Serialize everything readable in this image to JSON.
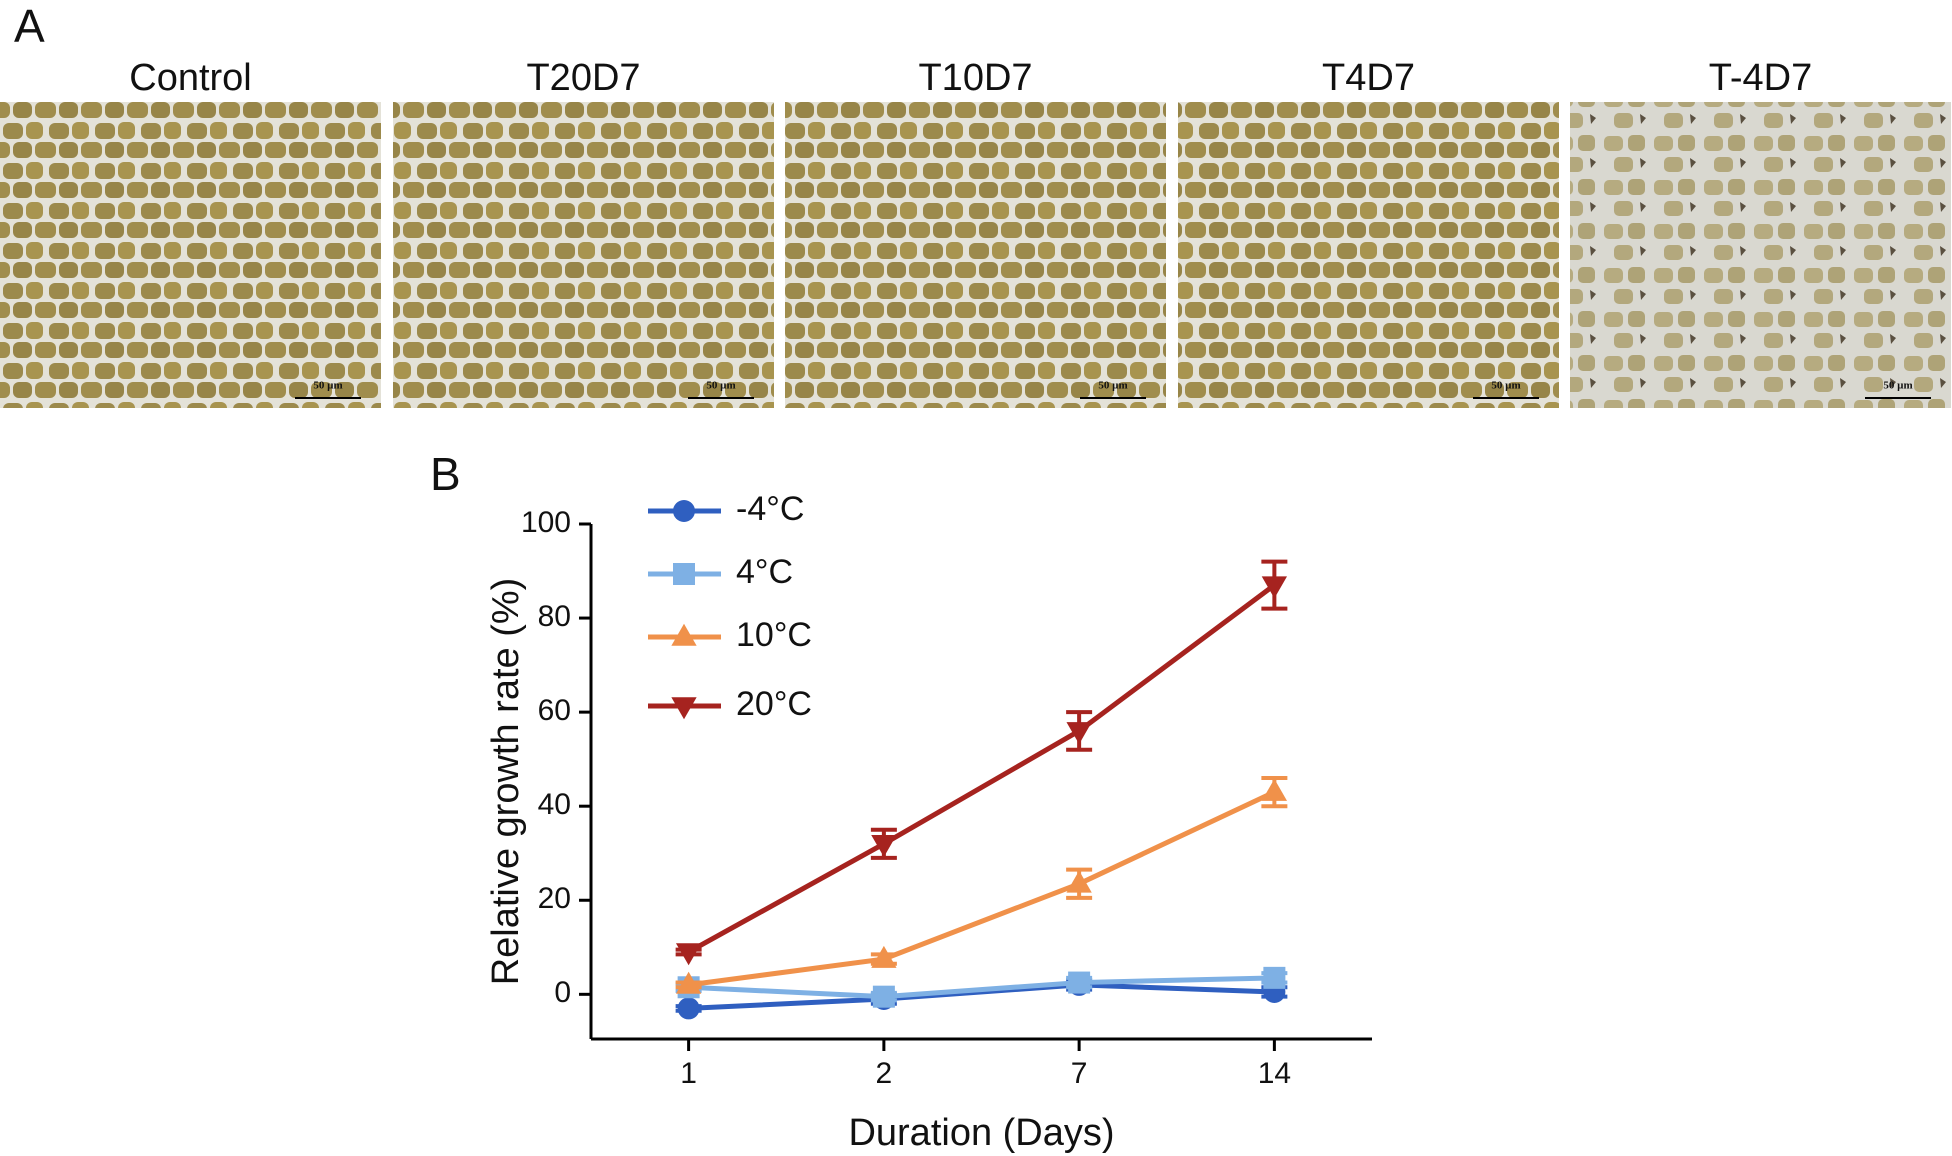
{
  "panel_a": {
    "label": "A",
    "images": [
      {
        "title": "Control",
        "scale_bar": "50 µm"
      },
      {
        "title": "T20D7",
        "scale_bar": "50 µm"
      },
      {
        "title": "T10D7",
        "scale_bar": "50 µm"
      },
      {
        "title": "T4D7",
        "scale_bar": "50 µm"
      },
      {
        "title": "T-4D7",
        "scale_bar": "50 µm"
      }
    ]
  },
  "chart_data": {
    "type": "line",
    "panel_label": "B",
    "x_label": "Duration (Days)",
    "y_label": "Relative growth rate (%)",
    "categories": [
      "1",
      "2",
      "7",
      "14"
    ],
    "ylim": [
      -9.5,
      100
    ],
    "yticks": [
      0,
      20,
      40,
      60,
      80,
      100
    ],
    "series": [
      {
        "name": "-4°C",
        "color": "#2f5fc0",
        "marker": "circle",
        "values": [
          -3,
          -1,
          2,
          0.5
        ],
        "errors": [
          0.5,
          1,
          1,
          1
        ]
      },
      {
        "name": "4°C",
        "color": "#7eb0e4",
        "marker": "square",
        "values": [
          1.5,
          -0.5,
          2.5,
          3.5
        ],
        "errors": [
          0.8,
          0.8,
          1,
          1
        ]
      },
      {
        "name": "10°C",
        "color": "#f0914a",
        "marker": "triangle-up",
        "values": [
          2,
          7.5,
          23.5,
          43
        ],
        "errors": [
          0.5,
          1,
          3,
          3
        ]
      },
      {
        "name": "20°C",
        "color": "#a6231f",
        "marker": "triangle-down",
        "values": [
          9,
          32,
          56,
          87
        ],
        "errors": [
          0.5,
          3,
          4,
          5
        ]
      }
    ]
  }
}
